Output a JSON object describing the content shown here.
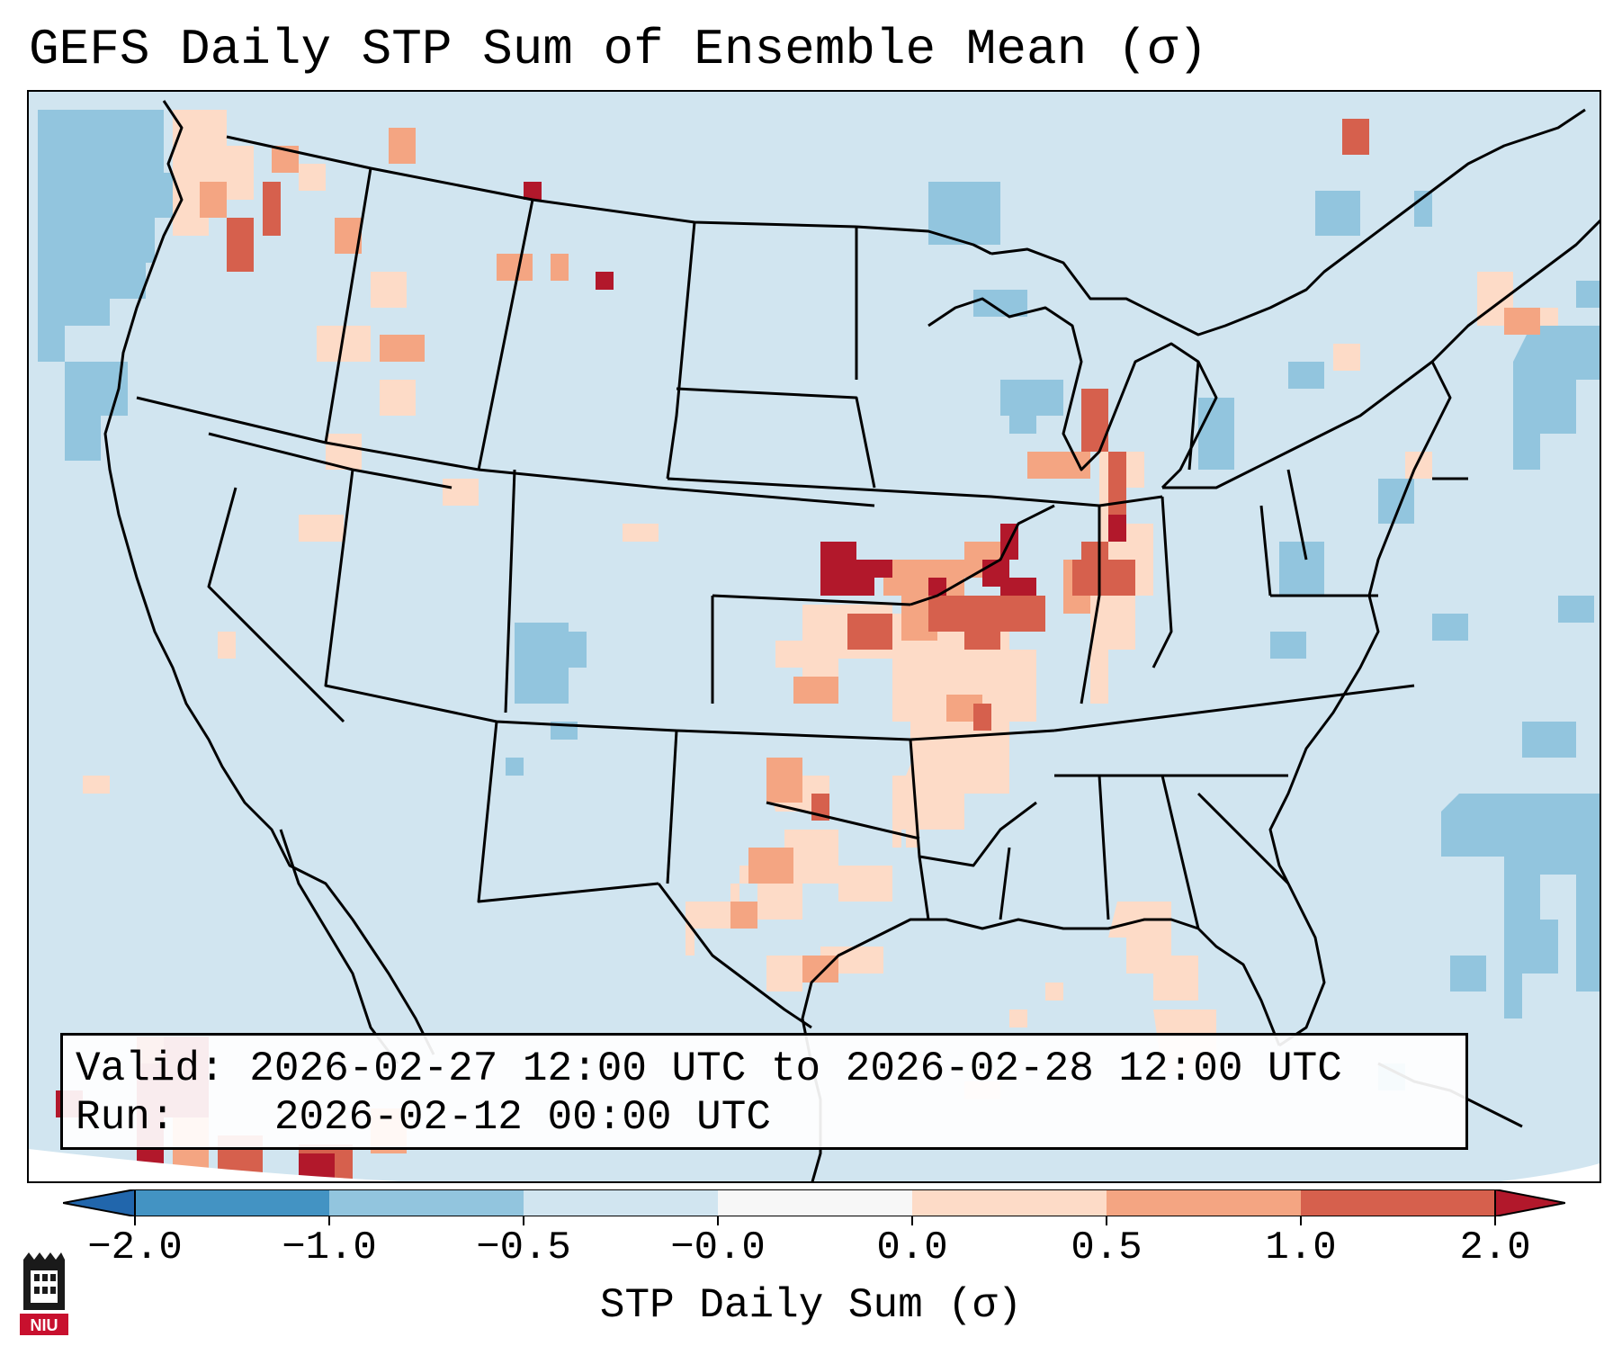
{
  "title": "GEFS Daily STP Sum of Ensemble Mean (σ)",
  "info_box": {
    "valid_label": "Valid:",
    "valid_value": "2026-02-27 12:00 UTC to 2026-02-28 12:00 UTC",
    "run_label": "Run:",
    "run_value": "2026-02-12 00:00 UTC"
  },
  "colorbar": {
    "label": "STP Daily Sum (σ)",
    "tick_labels": [
      "−2.0",
      "−1.0",
      "−0.5",
      "−0.0",
      "0.0",
      "0.5",
      "1.0",
      "2.0"
    ],
    "bins": [
      {
        "range": "<-2.0",
        "color": "#2166ac"
      },
      {
        "range": "-2.0 to -1.0",
        "color": "#4393c3"
      },
      {
        "range": "-1.0 to -0.5",
        "color": "#92c5de"
      },
      {
        "range": "-0.5 to -0.0",
        "color": "#d1e5f0"
      },
      {
        "range": "-0.0 to 0.0",
        "color": "#f7f7f7"
      },
      {
        "range": "0.0 to 0.5",
        "color": "#fddbc7"
      },
      {
        "range": "0.5 to 1.0",
        "color": "#f4a582"
      },
      {
        "range": "1.0 to 2.0",
        "color": "#d6604d"
      },
      {
        "range": ">2.0",
        "color": "#b2182b"
      }
    ]
  },
  "map": {
    "background_color": "#d1e5f0",
    "line_color": "#000000"
  },
  "logo": {
    "text": "NIU"
  }
}
